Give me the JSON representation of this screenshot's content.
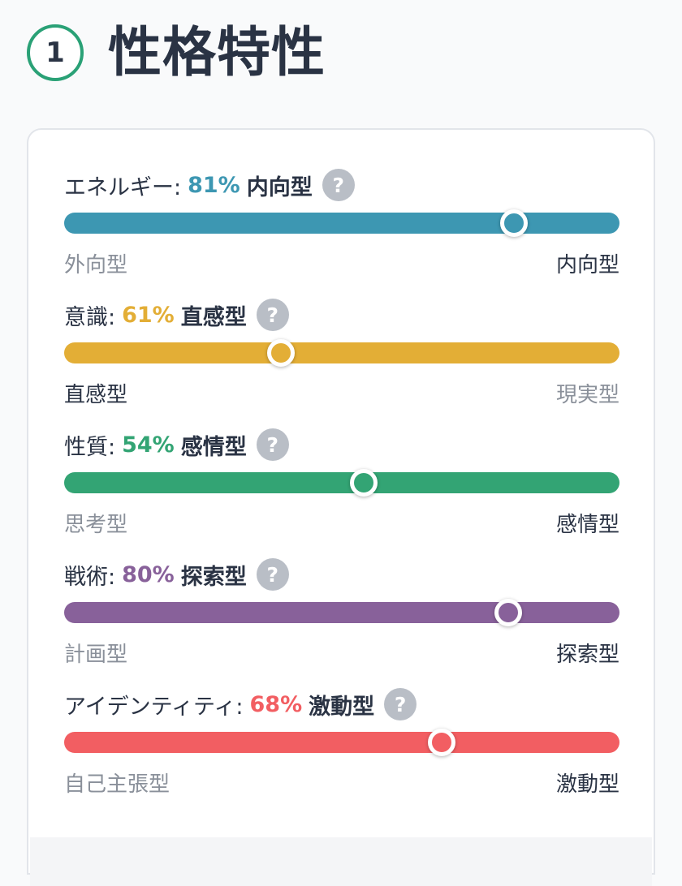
{
  "header": {
    "step": "1",
    "title": "性格特性"
  },
  "traits": [
    {
      "label": "エネルギー:",
      "percent": "81%",
      "type": "内向型",
      "value": 81,
      "color": "#3d97b2",
      "left_pole": "外向型",
      "right_pole": "内向型",
      "active_side": "right"
    },
    {
      "label": "意識:",
      "percent": "61%",
      "type": "直感型",
      "value": 39,
      "color": "#e3ae36",
      "left_pole": "直感型",
      "right_pole": "現実型",
      "active_side": "left"
    },
    {
      "label": "性質:",
      "percent": "54%",
      "type": "感情型",
      "value": 54,
      "color": "#33a474",
      "left_pole": "思考型",
      "right_pole": "感情型",
      "active_side": "right"
    },
    {
      "label": "戦術:",
      "percent": "80%",
      "type": "探索型",
      "value": 80,
      "color": "#88619a",
      "left_pole": "計画型",
      "right_pole": "探索型",
      "active_side": "right"
    },
    {
      "label": "アイデンティティ:",
      "percent": "68%",
      "type": "激動型",
      "value": 68,
      "color": "#f25e62",
      "left_pole": "自己主張型",
      "right_pole": "激動型",
      "active_side": "right"
    }
  ],
  "help_icon": "?"
}
